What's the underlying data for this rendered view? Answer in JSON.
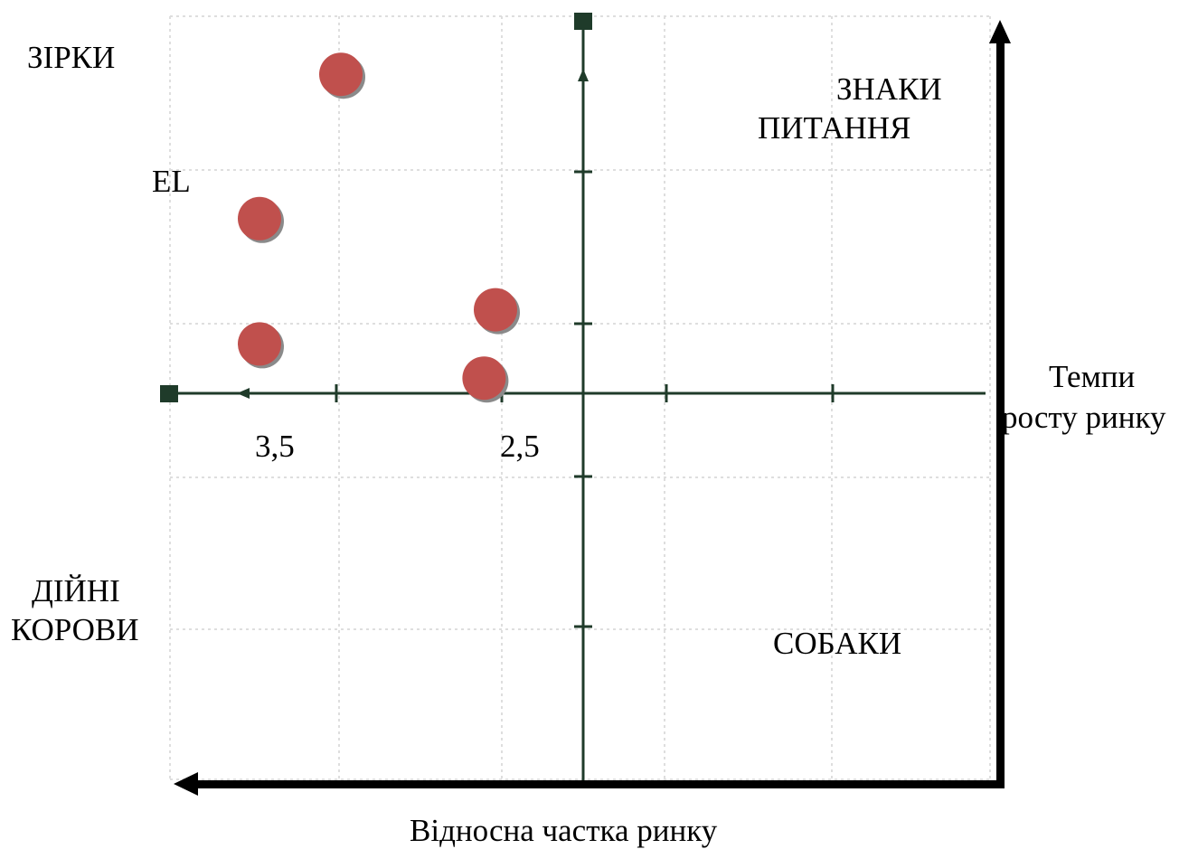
{
  "quadrants": {
    "stars": [
      "ЗІРКИ"
    ],
    "question_marks": [
      "ЗНАКИ",
      "ПИТАННЯ"
    ],
    "cash_cows": [
      "ДІЙНІ",
      "КОРОВИ"
    ],
    "dogs": [
      "СОБАКИ"
    ]
  },
  "point_label": "EL",
  "axes": {
    "y_label_lines": [
      "Темпи",
      "росту ринку"
    ],
    "x_label": "Відносна частка ринку"
  },
  "ticks": {
    "left": "3,5",
    "mid": "2,5"
  },
  "colors": {
    "bubble": "#c0504d",
    "axis_inner": "#1f3b2a",
    "axis_outer": "#000000",
    "grid": "#d9d9d9"
  },
  "chart_data": {
    "type": "scatter",
    "x_label": "Відносна частка ринку",
    "y_label": "Темпи росту ринку",
    "x_tick_labels": [
      "3,5",
      "2,5"
    ],
    "points": [
      {
        "x": 3.0,
        "y": 4.2
      },
      {
        "x": 3.5,
        "y": 2.3
      },
      {
        "x": 2.05,
        "y": 1.1
      },
      {
        "x": 3.5,
        "y": 0.65
      },
      {
        "x": 2.12,
        "y": 0.2
      }
    ]
  }
}
